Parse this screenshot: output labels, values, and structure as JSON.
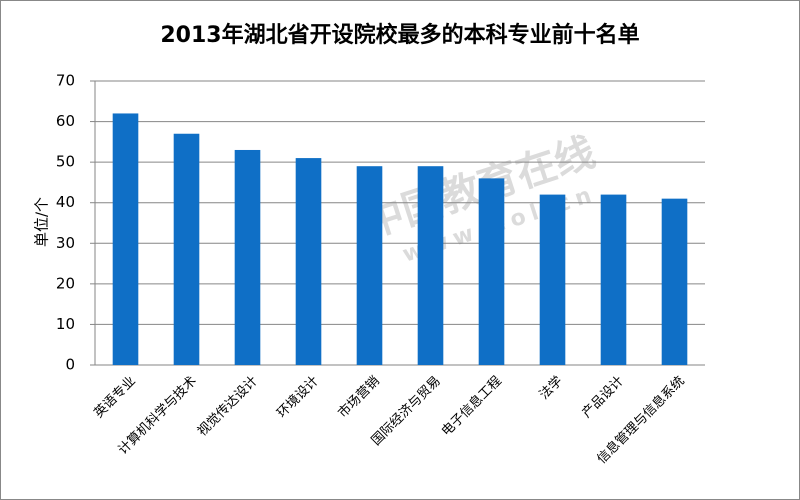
{
  "chart_data": {
    "type": "bar",
    "title": "2013年湖北省开设院校最多的本科专业前十名单",
    "y_label": "单位/个",
    "categories": [
      "英语专业",
      "计算机科学与技术",
      "视觉传达设计",
      "环境设计",
      "市场营销",
      "国际经济与贸易",
      "电子信息工程",
      "法学",
      "产品设计",
      "信息管理与信息系统"
    ],
    "values": [
      62,
      57,
      53,
      51,
      49,
      49,
      46,
      42,
      42,
      41
    ],
    "color": "#0f6fc6",
    "ylim": [
      0,
      70
    ],
    "yticks": [
      0,
      10,
      20,
      30,
      40,
      50,
      60,
      70
    ],
    "grid": true,
    "annotations": [
      "中国教育在线",
      "www.eol.cn"
    ]
  }
}
